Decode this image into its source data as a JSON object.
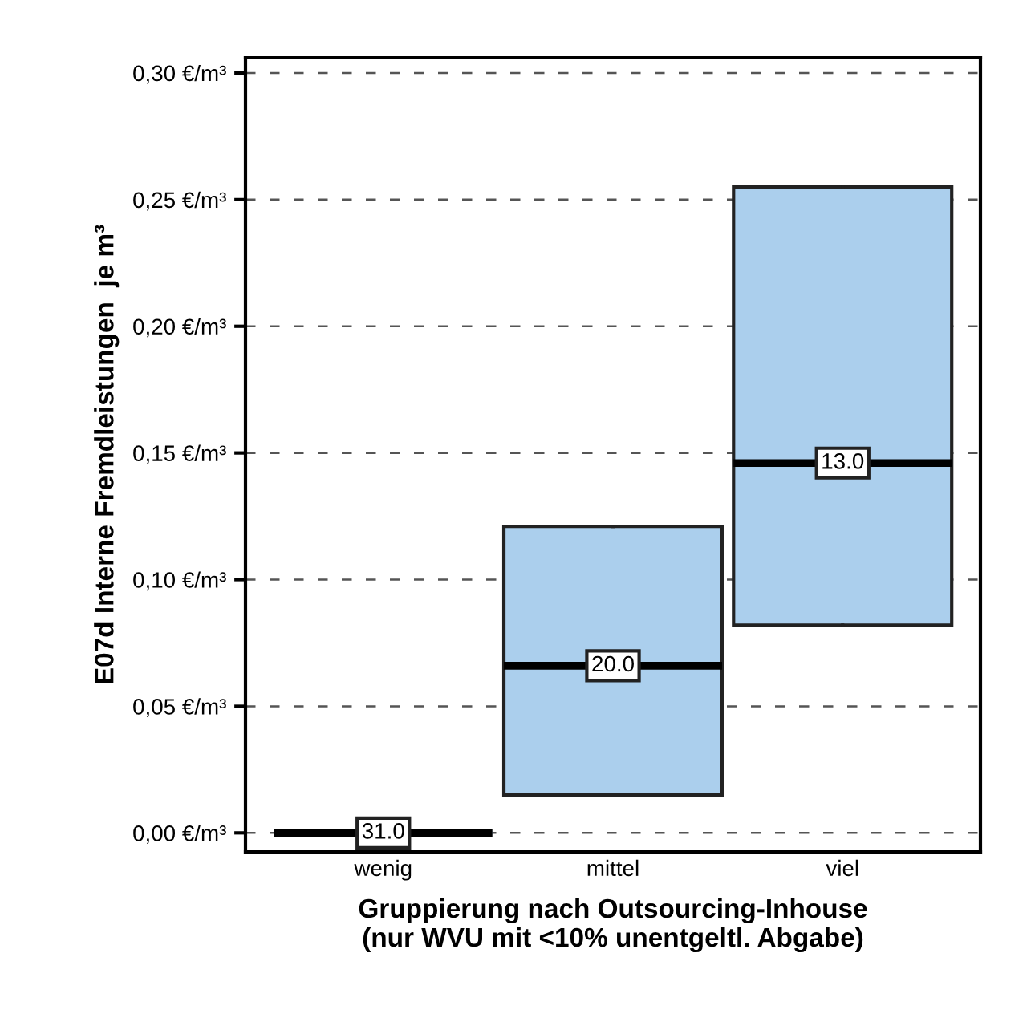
{
  "chart_data": {
    "type": "box",
    "categories": [
      "wenig",
      "mittel",
      "viel"
    ],
    "boxes": [
      {
        "low": 0.0,
        "q1": 0.0,
        "median": 0.0,
        "q3": 0.0,
        "high": 0.0
      },
      {
        "low": 0.015,
        "q1": 0.015,
        "median": 0.066,
        "q3": 0.121,
        "high": 0.121
      },
      {
        "low": 0.082,
        "q1": 0.082,
        "median": 0.146,
        "q3": 0.255,
        "high": 0.255
      }
    ],
    "color": "#abcfed",
    "ylabel": "E07d Interne Fremdleistungen  je m³",
    "xlabel": "Gruppierung nach Outsourcing-Inhouse\n(nur WVU mit <10% unentgeltl. Abgabe)",
    "ylim": [
      -0.0075,
      0.306
    ],
    "yticks": [
      {
        "value": 0.0,
        "label": "0,00 €/m³"
      },
      {
        "value": 0.05,
        "label": "0,05 €/m³"
      },
      {
        "value": 0.1,
        "label": "0,10 €/m³"
      },
      {
        "value": 0.15,
        "label": "0,15 €/m³"
      },
      {
        "value": 0.2,
        "label": "0,20 €/m³"
      },
      {
        "value": 0.25,
        "label": "0,25 €/m³"
      },
      {
        "value": 0.3,
        "label": "0,30 €/m³"
      }
    ],
    "grid": "y",
    "annotations": [
      {
        "text": "31.0",
        "x": "wenig",
        "y": 0.0
      },
      {
        "text": "20.0",
        "x": "mittel",
        "y": 0.066
      },
      {
        "text": "13.0",
        "x": "viel",
        "y": 0.146
      }
    ]
  }
}
